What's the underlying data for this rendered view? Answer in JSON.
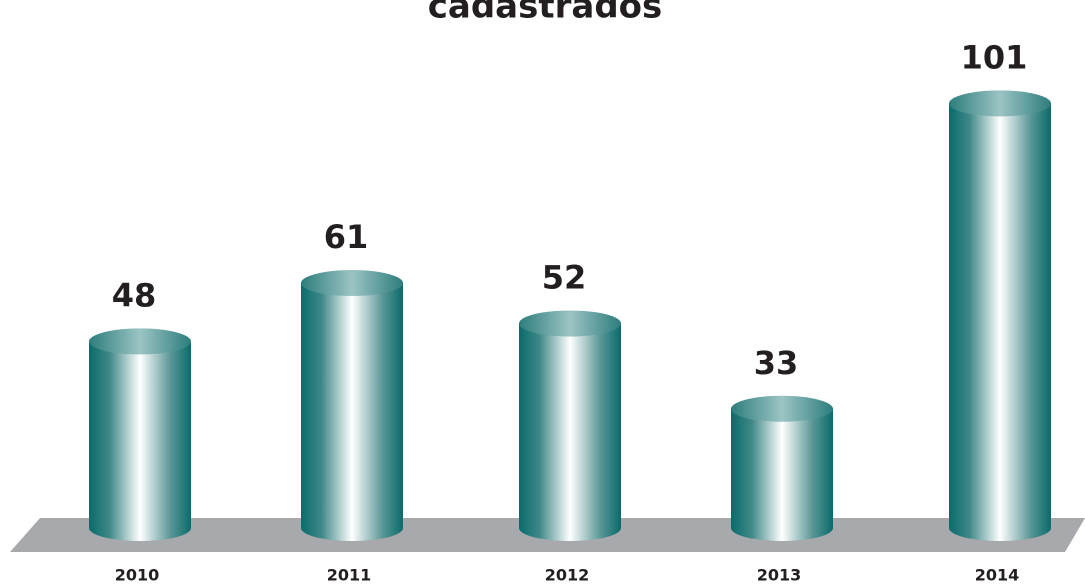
{
  "chart_data": {
    "type": "bar",
    "title": "cadastrados",
    "categories": [
      "2010",
      "2011",
      "2012",
      "2013",
      "2014"
    ],
    "values": [
      48,
      61,
      52,
      33,
      101
    ],
    "color": "#0a6b6b",
    "ylim": [
      0,
      110
    ]
  }
}
